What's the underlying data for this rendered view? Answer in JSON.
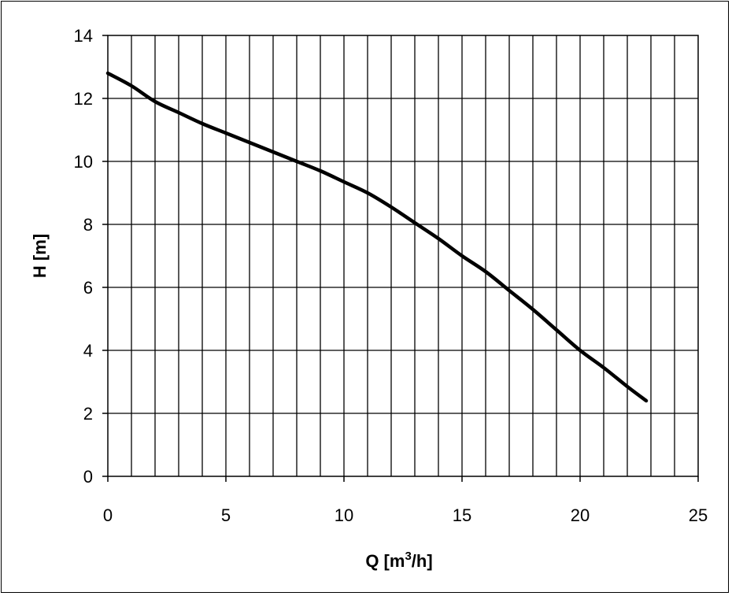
{
  "chart_data": {
    "type": "line",
    "title": "",
    "xlabel": "Q [m",
    "xlabel_sup": "3",
    "xlabel_tail": "/h]",
    "ylabel": "H [m]",
    "xlim": [
      0,
      25
    ],
    "ylim": [
      0,
      14
    ],
    "x_ticks": [
      "0",
      "5",
      "10",
      "15",
      "20",
      "25"
    ],
    "y_ticks": [
      "0",
      "2",
      "4",
      "6",
      "8",
      "10",
      "12",
      "14"
    ],
    "x_gridline_step": 1,
    "y_gridline_step": 2,
    "grid": true,
    "legend": "none",
    "line_color": "#000000",
    "series": [
      {
        "x": [
          0,
          1,
          2,
          3,
          4,
          5,
          6,
          7,
          8,
          9,
          10,
          11,
          12,
          13,
          14,
          15,
          16,
          17,
          18,
          19,
          20,
          21,
          22,
          22.8
        ],
        "y": [
          12.8,
          12.4,
          11.9,
          11.55,
          11.2,
          10.9,
          10.6,
          10.3,
          10.0,
          9.7,
          9.35,
          9.0,
          8.55,
          8.05,
          7.55,
          7.0,
          6.5,
          5.9,
          5.3,
          4.65,
          4.0,
          3.45,
          2.85,
          2.4
        ]
      }
    ]
  }
}
